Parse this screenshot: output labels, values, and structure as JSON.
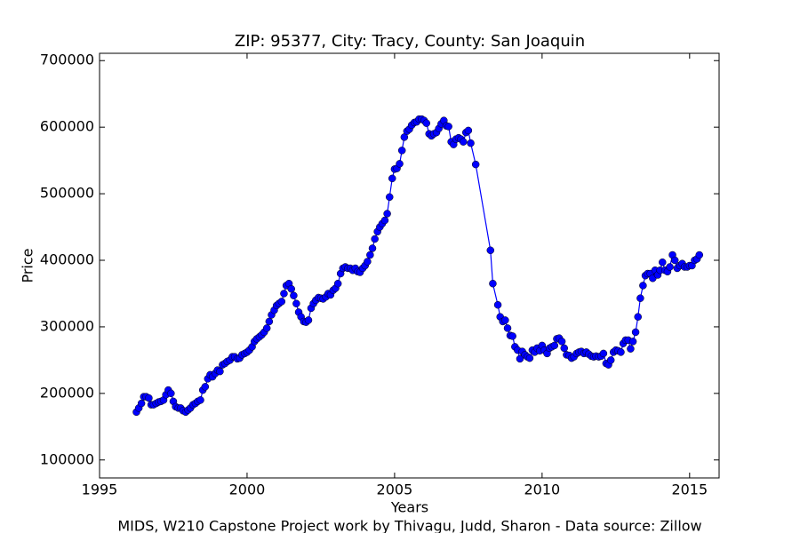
{
  "chart_data": {
    "type": "line",
    "title": "ZIP: 95377, City: Tracy, County: San Joaquin",
    "x_label": "Years",
    "y_label": "Price",
    "footer": "MIDS, W210 Capstone Project work by Thivagu, Judd, Sharon  -  Data source: Zillow",
    "xlim": [
      1995,
      2016
    ],
    "xticks": [
      1995,
      2000,
      2005,
      2010,
      2015
    ],
    "ylim": [
      73000,
      711000
    ],
    "yticks": [
      100000,
      200000,
      300000,
      400000,
      500000,
      600000,
      700000
    ],
    "grid": false,
    "series": [
      {
        "name": "Price",
        "color": "#0000ff",
        "x": [
          1996.25,
          1996.33,
          1996.42,
          1996.5,
          1996.58,
          1996.67,
          1996.75,
          1996.83,
          1996.92,
          1997.0,
          1997.08,
          1997.17,
          1997.25,
          1997.33,
          1997.42,
          1997.5,
          1997.58,
          1997.67,
          1997.75,
          1997.83,
          1997.92,
          1998.0,
          1998.08,
          1998.17,
          1998.25,
          1998.33,
          1998.42,
          1998.5,
          1998.58,
          1998.67,
          1998.75,
          1998.83,
          1998.92,
          1999.0,
          1999.08,
          1999.17,
          1999.25,
          1999.33,
          1999.42,
          1999.5,
          1999.58,
          1999.67,
          1999.75,
          1999.83,
          1999.92,
          2000.0,
          2000.08,
          2000.17,
          2000.25,
          2000.33,
          2000.42,
          2000.5,
          2000.58,
          2000.67,
          2000.75,
          2000.83,
          2000.92,
          2001.0,
          2001.08,
          2001.17,
          2001.25,
          2001.33,
          2001.42,
          2001.5,
          2001.58,
          2001.67,
          2001.75,
          2001.83,
          2001.92,
          2002.0,
          2002.08,
          2002.17,
          2002.25,
          2002.33,
          2002.42,
          2002.5,
          2002.58,
          2002.67,
          2002.75,
          2002.83,
          2002.92,
          2003.0,
          2003.08,
          2003.17,
          2003.25,
          2003.33,
          2003.42,
          2003.5,
          2003.58,
          2003.67,
          2003.75,
          2003.83,
          2003.92,
          2004.0,
          2004.08,
          2004.17,
          2004.25,
          2004.33,
          2004.42,
          2004.5,
          2004.58,
          2004.67,
          2004.75,
          2004.83,
          2004.92,
          2005.0,
          2005.08,
          2005.17,
          2005.25,
          2005.33,
          2005.42,
          2005.5,
          2005.58,
          2005.67,
          2005.75,
          2005.83,
          2005.92,
          2006.0,
          2006.08,
          2006.17,
          2006.25,
          2006.33,
          2006.42,
          2006.5,
          2006.58,
          2006.67,
          2006.75,
          2006.83,
          2006.92,
          2007.0,
          2007.08,
          2007.17,
          2007.25,
          2007.33,
          2007.42,
          2007.5,
          2007.58,
          2007.75,
          2008.25,
          2008.33,
          2008.5,
          2008.58,
          2008.67,
          2008.75,
          2008.83,
          2008.92,
          2009.0,
          2009.08,
          2009.17,
          2009.25,
          2009.33,
          2009.42,
          2009.5,
          2009.58,
          2009.67,
          2009.75,
          2009.83,
          2009.92,
          2010.0,
          2010.08,
          2010.17,
          2010.25,
          2010.33,
          2010.42,
          2010.5,
          2010.58,
          2010.67,
          2010.75,
          2010.83,
          2010.92,
          2011.0,
          2011.08,
          2011.17,
          2011.25,
          2011.33,
          2011.42,
          2011.5,
          2011.58,
          2011.67,
          2011.75,
          2011.83,
          2011.92,
          2012.0,
          2012.08,
          2012.17,
          2012.25,
          2012.33,
          2012.42,
          2012.5,
          2012.58,
          2012.67,
          2012.75,
          2012.83,
          2012.92,
          2013.0,
          2013.08,
          2013.17,
          2013.25,
          2013.33,
          2013.42,
          2013.5,
          2013.58,
          2013.67,
          2013.75,
          2013.83,
          2013.92,
          2014.0,
          2014.08,
          2014.17,
          2014.25,
          2014.33,
          2014.42,
          2014.5,
          2014.58,
          2014.67,
          2014.75,
          2014.83,
          2014.92,
          2015.0,
          2015.08,
          2015.17,
          2015.25,
          2015.33
        ],
        "values": [
          172000,
          178000,
          185000,
          195000,
          195000,
          193000,
          183000,
          183000,
          185000,
          187000,
          188000,
          190000,
          198000,
          205000,
          200000,
          188000,
          180000,
          178000,
          178000,
          174000,
          172000,
          175000,
          178000,
          183000,
          185000,
          188000,
          190000,
          205000,
          210000,
          222000,
          228000,
          225000,
          230000,
          235000,
          233000,
          243000,
          245000,
          248000,
          250000,
          255000,
          255000,
          252000,
          253000,
          258000,
          260000,
          262000,
          265000,
          270000,
          278000,
          282000,
          285000,
          288000,
          292000,
          298000,
          308000,
          318000,
          325000,
          332000,
          335000,
          338000,
          350000,
          362000,
          365000,
          357000,
          347000,
          335000,
          322000,
          315000,
          308000,
          307000,
          310000,
          328000,
          335000,
          340000,
          344000,
          343000,
          342000,
          345000,
          350000,
          348000,
          355000,
          358000,
          365000,
          380000,
          388000,
          390000,
          388000,
          388000,
          385000,
          388000,
          383000,
          382000,
          388000,
          392000,
          398000,
          408000,
          418000,
          432000,
          443000,
          450000,
          455000,
          460000,
          470000,
          495000,
          523000,
          537000,
          538000,
          545000,
          565000,
          585000,
          594000,
          597000,
          603000,
          607000,
          608000,
          612000,
          612000,
          610000,
          606000,
          590000,
          587000,
          590000,
          592000,
          598000,
          605000,
          610000,
          602000,
          601000,
          578000,
          574000,
          582000,
          584000,
          582000,
          578000,
          592000,
          595000,
          576000,
          544000,
          415000,
          365000,
          333000,
          315000,
          308000,
          310000,
          298000,
          287000,
          286000,
          270000,
          265000,
          252000,
          263000,
          258000,
          255000,
          253000,
          265000,
          262000,
          268000,
          264000,
          272000,
          265000,
          260000,
          268000,
          270000,
          272000,
          282000,
          283000,
          278000,
          268000,
          258000,
          257000,
          253000,
          255000,
          260000,
          262000,
          263000,
          260000,
          262000,
          259000,
          256000,
          255000,
          256000,
          255000,
          256000,
          260000,
          245000,
          243000,
          250000,
          262000,
          265000,
          264000,
          262000,
          275000,
          280000,
          280000,
          267000,
          278000,
          292000,
          315000,
          343000,
          362000,
          377000,
          380000,
          380000,
          373000,
          385000,
          378000,
          385000,
          397000,
          385000,
          383000,
          390000,
          408000,
          400000,
          388000,
          392000,
          395000,
          390000,
          390000,
          392000,
          392000,
          400000,
          402000,
          408000
        ]
      }
    ]
  }
}
